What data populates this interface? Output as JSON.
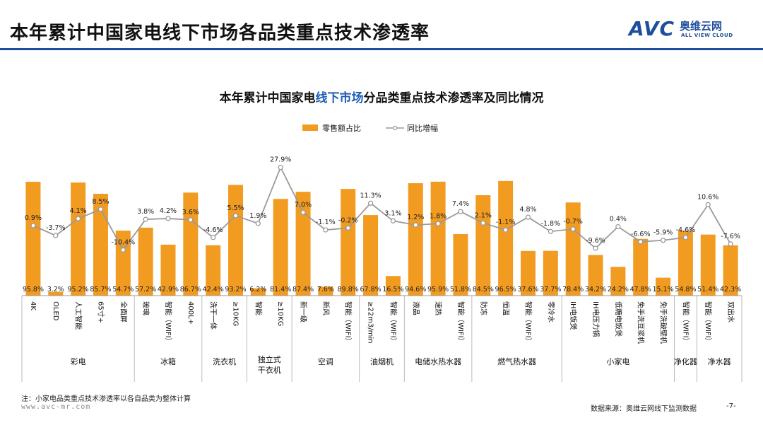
{
  "header": {
    "title": "本年累计中国家电线下市场各品类重点技术渗透率",
    "logo_mark": "AVC",
    "logo_cn": "奥维云网",
    "logo_en": "ALL VIEW CLOUD"
  },
  "footer": {
    "note": "注：小家电品类重点技术渗透率以各自品类为整体计算",
    "website": "www.avc-mr.com",
    "source": "数据来源：奥维云网线下监测数据",
    "page": "-7-"
  },
  "colors": {
    "bar": "#f29b21",
    "line": "#9a9a9a",
    "marker_fill": "#ffffff",
    "brand": "#1f4e9c"
  },
  "chart_data": {
    "type": "bar",
    "title_parts": [
      "本年累计中国家电",
      "线下市场",
      "分品类重点技术渗透率及同比情况"
    ],
    "legend": {
      "bar": "零售额占比",
      "line": "同比增幅",
      "position": "top-center"
    },
    "categories": [
      "4K",
      "OLED",
      "人工智能",
      "65寸+",
      "全面屏",
      "玻璃",
      "智能（WIFI）",
      "400L+",
      "洗干一体",
      "≥10KG",
      "智能",
      "≥10KG",
      "新一级",
      "新风",
      "智能（WIFI）",
      "≥22m3/min",
      "智能（WIFI）",
      "液晶",
      "速热",
      "智能（WIFI）",
      "防冻",
      "恒温",
      "智能（WIFI）",
      "零冷水",
      "IH电饭煲",
      "IH电压力锅",
      "低糖电饭煲",
      "免手洗豆浆机",
      "免手洗破壁机",
      "智能（WIFI）",
      "智能（WIFI）",
      "双出水"
    ],
    "groups": [
      {
        "name": "彩电",
        "count": 5
      },
      {
        "name": "冰箱",
        "count": 3
      },
      {
        "name": "洗衣机",
        "count": 2
      },
      {
        "name": "独立式干衣机",
        "count": 2
      },
      {
        "name": "空调",
        "count": 3
      },
      {
        "name": "油烟机",
        "count": 2
      },
      {
        "name": "电储水热水器",
        "count": 3
      },
      {
        "name": "燃气热水器",
        "count": 4
      },
      {
        "name": "小家电",
        "count": 5
      },
      {
        "name": "净化器",
        "count": 1
      },
      {
        "name": "净水器",
        "count": 2
      }
    ],
    "series": [
      {
        "name": "零售额占比",
        "kind": "bar",
        "unit": "%",
        "values": [
          95.8,
          3.2,
          95.2,
          85.7,
          54.7,
          57.2,
          42.9,
          86.7,
          42.4,
          93.2,
          6.2,
          81.4,
          87.4,
          7.6,
          89.8,
          67.8,
          16.5,
          94.6,
          95.9,
          51.8,
          84.5,
          96.5,
          37.6,
          37.7,
          78.4,
          34.2,
          24.2,
          47.8,
          15.1,
          54.8,
          51.4,
          42.3
        ],
        "labels": [
          "95.8%",
          "3.2%",
          "95.2%",
          "85.7%",
          "54.7%",
          "57.2%",
          "42.9%",
          "86.7%",
          "42.4%",
          "93.2%",
          "6.2%",
          "81.4%",
          "87.4%",
          "7.6%",
          "89.8%",
          "67.8%",
          "16.5%",
          "94.6%",
          "95.9%",
          "51.8%",
          "84.5%",
          "96.5%",
          "37.6%",
          "37.7%",
          "78.4%",
          "34.2%",
          "24.2%",
          "47.8%",
          "15.1%",
          "54.8%",
          "51.4%",
          "42.3%"
        ]
      },
      {
        "name": "同比增幅",
        "kind": "line",
        "unit": "%",
        "values": [
          0.9,
          -3.7,
          4.1,
          8.5,
          -10.4,
          3.8,
          4.2,
          3.6,
          -4.6,
          5.5,
          1.9,
          27.9,
          7.0,
          -1.1,
          -0.2,
          11.3,
          3.1,
          1.2,
          1.8,
          7.4,
          2.1,
          -1.1,
          4.8,
          -1.8,
          -0.7,
          -9.6,
          0.4,
          -6.6,
          -5.9,
          -4.6,
          10.6,
          -7.6
        ],
        "labels": [
          "0.9%",
          "-3.7%",
          "4.1%",
          "8.5%",
          "-10.4%",
          "3.8%",
          "4.2%",
          "3.6%",
          "-4.6%",
          "5.5%",
          "1.9%",
          "27.9%",
          "7.0%",
          "-1.1%",
          "-0.2%",
          "11.3%",
          "3.1%",
          "1.2%",
          "1.8%",
          "7.4%",
          "2.1%",
          "-1.1%",
          "4.8%",
          "-1.8%",
          "-0.7%",
          "-9.6%",
          "0.4%",
          "-6.6%",
          "-5.9%",
          "-4.6%",
          "10.6%",
          "-7.6%"
        ]
      }
    ],
    "bar_ylim": [
      0,
      100
    ],
    "line_ylim": [
      -25,
      35
    ],
    "grid": false
  }
}
